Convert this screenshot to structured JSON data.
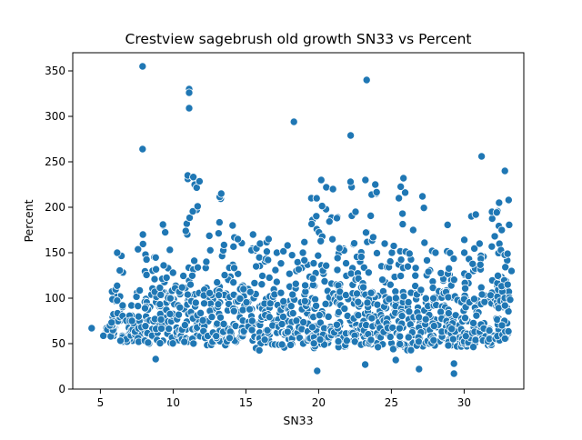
{
  "chart_data": {
    "type": "scatter",
    "title": "Crestview sagebrush old growth SN33 vs Percent",
    "xlabel": "SN33",
    "ylabel": "Percent",
    "xlim": [
      3.1,
      34.1
    ],
    "ylim": [
      0,
      370
    ],
    "x_ticks": [
      5,
      10,
      15,
      20,
      25,
      30
    ],
    "y_ticks": [
      0,
      50,
      100,
      150,
      200,
      250,
      300,
      350
    ],
    "grid": false,
    "legend": "none",
    "marker_color": "#1f77b4",
    "marker_edge_color": "#ffffff",
    "highlighted_points": {
      "x": [
        4.4,
        7.9,
        7.9,
        11.1,
        11.1,
        11.1,
        18.3,
        22.2,
        23.3,
        31.2,
        32.8,
        8.8,
        9.3,
        19.9,
        23.2,
        26.9,
        29.3,
        29.3,
        25.3,
        30.8
      ],
      "y": [
        67,
        355,
        264,
        330,
        326,
        309,
        294,
        279,
        340,
        256,
        240,
        33,
        181,
        20,
        27,
        22,
        17,
        28,
        32,
        192
      ]
    },
    "series": [
      {
        "cluster_x": [
          5.6,
          6.2,
          6.8,
          7.3,
          7.9,
          8.4,
          9.0,
          9.5,
          10.1,
          10.6,
          11.2,
          11.7,
          12.3,
          12.8,
          13.4,
          13.9,
          14.5,
          15.0,
          15.6,
          16.1,
          16.7,
          17.2,
          17.8,
          18.3,
          18.9,
          19.4,
          20.0,
          20.5,
          21.1,
          21.6,
          22.2,
          22.7,
          23.3,
          23.8,
          24.4,
          24.9,
          25.5,
          26.0,
          26.6,
          27.1,
          27.7,
          28.2,
          28.8,
          29.3,
          29.9,
          30.4,
          31.0,
          31.5,
          32.1,
          32.6,
          32.9
        ],
        "cluster_low": [
          58,
          55,
          52,
          58,
          52,
          50,
          52,
          50,
          50,
          52,
          52,
          50,
          48,
          52,
          48,
          52,
          55,
          58,
          52,
          42,
          50,
          45,
          55,
          48,
          50,
          52,
          45,
          48,
          55,
          46,
          48,
          50,
          48,
          50,
          46,
          44,
          45,
          42,
          46,
          44,
          48,
          48,
          46,
          47,
          45,
          46,
          44,
          48,
          52,
          50,
          55
        ],
        "cluster_high": [
          70,
          150,
          92,
          75,
          170,
          148,
          165,
          180,
          128,
          150,
          235,
          250,
          140,
          170,
          215,
          180,
          165,
          110,
          170,
          160,
          165,
          150,
          158,
          130,
          150,
          210,
          230,
          222,
          220,
          155,
          228,
          195,
          230,
          225,
          160,
          150,
          210,
          232,
          175,
          212,
          152,
          150,
          218,
          155,
          150,
          190,
          160,
          155,
          195,
          205,
          208
        ]
      }
    ]
  }
}
